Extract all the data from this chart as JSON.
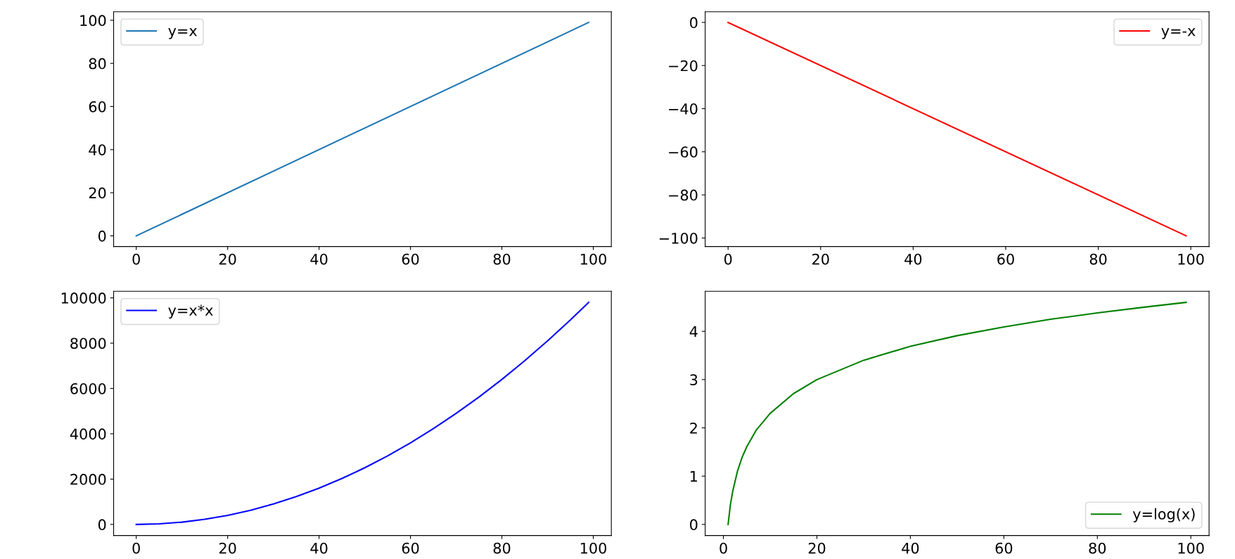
{
  "chart_data": [
    {
      "type": "line",
      "x": [
        0,
        99
      ],
      "series": [
        {
          "name": "y=x",
          "color": "#1f77b4",
          "values": [
            0,
            99
          ]
        }
      ],
      "xlim": [
        -4.95,
        103.95
      ],
      "ylim": [
        -4.95,
        103.95
      ],
      "xticks": [
        0,
        20,
        40,
        60,
        80,
        100
      ],
      "yticks": [
        0,
        20,
        40,
        60,
        80,
        100
      ],
      "legend": "top left",
      "grid": false
    },
    {
      "type": "line",
      "x": [
        0,
        99
      ],
      "series": [
        {
          "name": "y=-x",
          "color": "#ff0000",
          "values": [
            0,
            -99
          ]
        }
      ],
      "xlim": [
        -4.95,
        103.95
      ],
      "ylim": [
        -103.95,
        4.95
      ],
      "xticks": [
        0,
        20,
        40,
        60,
        80,
        100
      ],
      "yticks": [
        {
          "value": -100,
          "label": "−100"
        },
        {
          "value": -80,
          "label": "−80"
        },
        {
          "value": -60,
          "label": "−60"
        },
        {
          "value": -40,
          "label": "−40"
        },
        {
          "value": -20,
          "label": "−20"
        },
        0
      ],
      "legend": "top right",
      "grid": false
    },
    {
      "type": "line",
      "x": [
        0,
        5,
        10,
        15,
        20,
        25,
        30,
        35,
        40,
        45,
        50,
        55,
        60,
        65,
        70,
        75,
        80,
        85,
        90,
        95,
        99
      ],
      "series": [
        {
          "name": "y=x*x",
          "color": "#0000ff",
          "values": [
            0,
            25,
            100,
            225,
            400,
            625,
            900,
            1225,
            1600,
            2025,
            2500,
            3025,
            3600,
            4225,
            4900,
            5625,
            6400,
            7225,
            8100,
            9025,
            9801
          ]
        }
      ],
      "xlim": [
        -4.95,
        103.95
      ],
      "ylim": [
        -490,
        10291
      ],
      "xticks": [
        0,
        20,
        40,
        60,
        80,
        100
      ],
      "yticks": [
        0,
        2000,
        4000,
        6000,
        8000,
        10000
      ],
      "legend": "top left",
      "grid": false
    },
    {
      "type": "line",
      "x": [
        1,
        1.5,
        2,
        3,
        4,
        5,
        7,
        10,
        15,
        20,
        30,
        40,
        50,
        60,
        70,
        80,
        90,
        99
      ],
      "series": [
        {
          "name": "y=log(x)",
          "color": "#008000",
          "values": [
            0,
            0.41,
            0.69,
            1.1,
            1.39,
            1.61,
            1.95,
            2.3,
            2.71,
            3.0,
            3.4,
            3.69,
            3.91,
            4.09,
            4.25,
            4.38,
            4.5,
            4.6
          ]
        }
      ],
      "xlim": [
        -3.9,
        103.9
      ],
      "ylim": [
        -0.23,
        4.83
      ],
      "xticks": [
        0,
        20,
        40,
        60,
        80,
        100
      ],
      "yticks": [
        0,
        1,
        2,
        3,
        4
      ],
      "legend": "bottom right",
      "grid": false
    }
  ]
}
